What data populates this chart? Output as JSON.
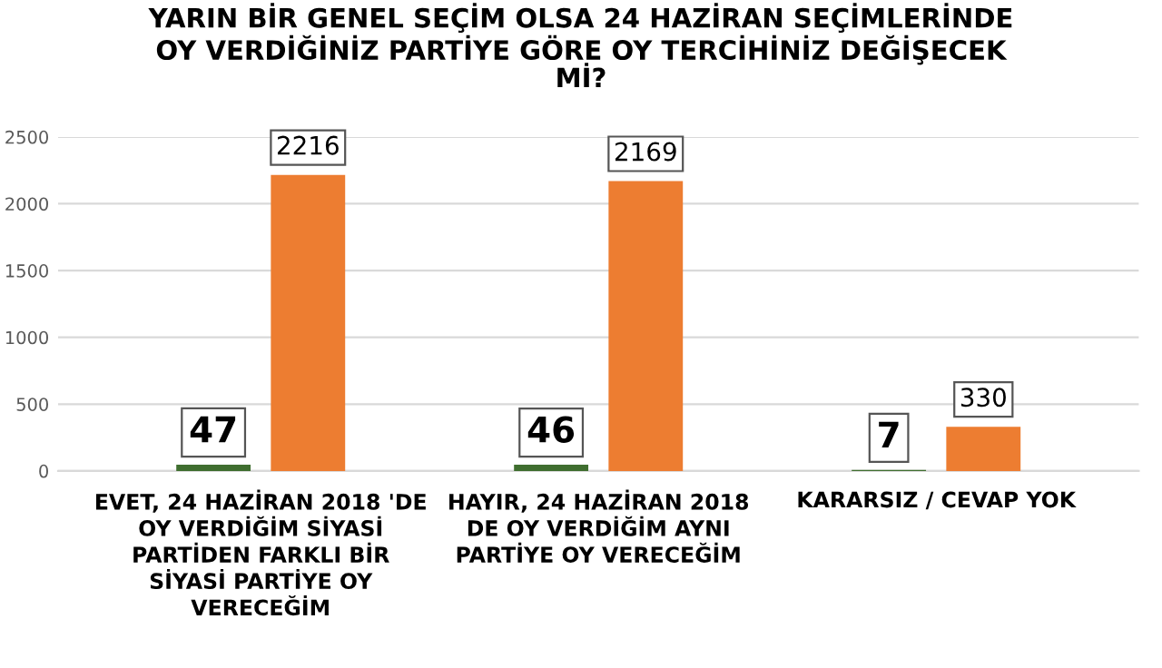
{
  "chart_data": {
    "type": "bar",
    "title": "YARIN BİR GENEL SEÇİM OLSA 24 HAZİRAN SEÇİMLERİNDE\nOY VERDİĞİNİZ PARTİYE GÖRE OY TERCİHİNİZ DEĞİŞECEK\nMİ?",
    "categories": [
      "EVET, 24 HAZİRAN 2018 'DE\nOY VERDİĞİM SİYASİ\nPARTİDEN FARKLI BİR\nSİYASİ PARTİYE OY\nVERECEĞİM",
      "HAYIR, 24 HAZİRAN 2018\nDE OY VERDİĞİM AYNI\nPARTİYE OY VERECEĞİM",
      "KARARSIZ / CEVAP YOK"
    ],
    "series": [
      {
        "color": "#3f6e2f",
        "values": [
          47,
          46,
          7
        ]
      },
      {
        "color": "#ed7d31",
        "values": [
          2216,
          2169,
          330
        ]
      }
    ],
    "ylim": [
      0,
      2500
    ],
    "yticks": [
      0,
      500,
      1000,
      1500,
      2000,
      2500
    ],
    "grid": "y",
    "data_labels": true
  }
}
